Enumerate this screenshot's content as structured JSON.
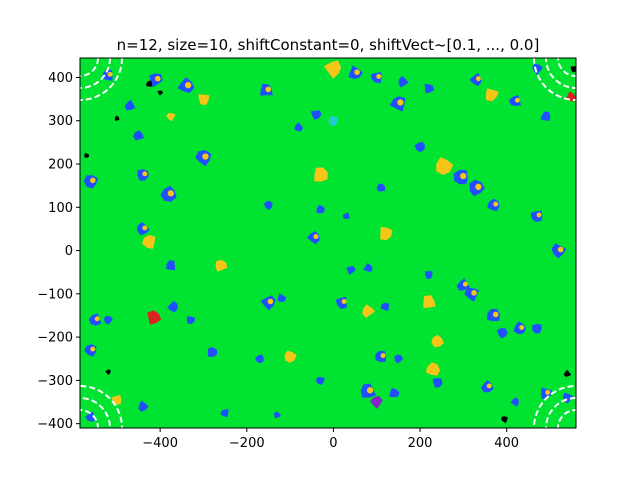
{
  "chart_data": {
    "type": "heatmap",
    "title": "n=12, size=10, shiftConstant=0,  shiftVect~[0.1, ..., 0.0]",
    "xlabel": "",
    "ylabel": "",
    "xlim": [
      -585,
      560
    ],
    "ylim": [
      -410,
      445
    ],
    "x_ticks": [
      -400,
      -200,
      0,
      200,
      400
    ],
    "y_ticks": [
      -400,
      -300,
      -200,
      -100,
      0,
      100,
      200,
      300,
      400
    ],
    "x_tick_labels": [
      "−400",
      "−200",
      "0",
      "200",
      "400"
    ],
    "y_tick_labels": [
      "−400",
      "−300",
      "−200",
      "−100",
      "0",
      "100",
      "200",
      "300",
      "400"
    ],
    "grid": false,
    "background_color": "#00e331",
    "patch_colors": {
      "blue": "#1f4fff",
      "yellow": "#f5c518",
      "cyan": "#22cccc",
      "purple": "#8822cc",
      "red": "#dd2222",
      "black": "#000000",
      "white": "#ffffff"
    },
    "patches": [
      {
        "x": -520,
        "y": 405,
        "s": 14,
        "c": "blue"
      },
      {
        "x": -410,
        "y": 395,
        "s": 16,
        "c": "blue"
      },
      {
        "x": -340,
        "y": 380,
        "s": 18,
        "c": "blue"
      },
      {
        "x": -300,
        "y": 350,
        "s": 14,
        "c": "yellow"
      },
      {
        "x": -470,
        "y": 335,
        "s": 12,
        "c": "blue"
      },
      {
        "x": -375,
        "y": 310,
        "s": 10,
        "c": "yellow"
      },
      {
        "x": -155,
        "y": 370,
        "s": 16,
        "c": "blue"
      },
      {
        "x": 0,
        "y": 420,
        "s": 20,
        "c": "yellow"
      },
      {
        "x": 50,
        "y": 410,
        "s": 16,
        "c": "blue"
      },
      {
        "x": 100,
        "y": 400,
        "s": 14,
        "c": "blue"
      },
      {
        "x": 160,
        "y": 390,
        "s": 12,
        "c": "blue"
      },
      {
        "x": 150,
        "y": 340,
        "s": 18,
        "c": "blue"
      },
      {
        "x": 220,
        "y": 375,
        "s": 12,
        "c": "blue"
      },
      {
        "x": 330,
        "y": 395,
        "s": 14,
        "c": "blue"
      },
      {
        "x": 365,
        "y": 360,
        "s": 16,
        "c": "yellow"
      },
      {
        "x": 420,
        "y": 345,
        "s": 14,
        "c": "blue"
      },
      {
        "x": 470,
        "y": 420,
        "s": 12,
        "c": "blue"
      },
      {
        "x": 490,
        "y": 310,
        "s": 12,
        "c": "blue"
      },
      {
        "x": -40,
        "y": 315,
        "s": 12,
        "c": "blue"
      },
      {
        "x": -80,
        "y": 285,
        "s": 10,
        "c": "blue"
      },
      {
        "x": 0,
        "y": 300,
        "s": 12,
        "c": "cyan"
      },
      {
        "x": -450,
        "y": 265,
        "s": 12,
        "c": "blue"
      },
      {
        "x": -300,
        "y": 215,
        "s": 18,
        "c": "blue"
      },
      {
        "x": -30,
        "y": 175,
        "s": 18,
        "c": "yellow"
      },
      {
        "x": 200,
        "y": 240,
        "s": 12,
        "c": "blue"
      },
      {
        "x": 255,
        "y": 195,
        "s": 20,
        "c": "yellow"
      },
      {
        "x": 295,
        "y": 170,
        "s": 18,
        "c": "blue"
      },
      {
        "x": 330,
        "y": 145,
        "s": 18,
        "c": "blue"
      },
      {
        "x": 370,
        "y": 105,
        "s": 14,
        "c": "blue"
      },
      {
        "x": -440,
        "y": 175,
        "s": 14,
        "c": "blue"
      },
      {
        "x": -380,
        "y": 130,
        "s": 18,
        "c": "blue"
      },
      {
        "x": -560,
        "y": 160,
        "s": 16,
        "c": "blue"
      },
      {
        "x": 110,
        "y": 145,
        "s": 10,
        "c": "blue"
      },
      {
        "x": -150,
        "y": 105,
        "s": 10,
        "c": "blue"
      },
      {
        "x": -30,
        "y": 95,
        "s": 10,
        "c": "blue"
      },
      {
        "x": 470,
        "y": 80,
        "s": 14,
        "c": "blue"
      },
      {
        "x": -440,
        "y": 50,
        "s": 14,
        "c": "blue"
      },
      {
        "x": -425,
        "y": 20,
        "s": 16,
        "c": "yellow"
      },
      {
        "x": -260,
        "y": -35,
        "s": 14,
        "c": "yellow"
      },
      {
        "x": -45,
        "y": 30,
        "s": 14,
        "c": "blue"
      },
      {
        "x": 120,
        "y": 40,
        "s": 16,
        "c": "yellow"
      },
      {
        "x": 30,
        "y": 80,
        "s": 8,
        "c": "blue"
      },
      {
        "x": 520,
        "y": 0,
        "s": 16,
        "c": "blue"
      },
      {
        "x": -375,
        "y": -35,
        "s": 12,
        "c": "blue"
      },
      {
        "x": 40,
        "y": -45,
        "s": 10,
        "c": "blue"
      },
      {
        "x": 80,
        "y": -40,
        "s": 10,
        "c": "blue"
      },
      {
        "x": 220,
        "y": -55,
        "s": 10,
        "c": "blue"
      },
      {
        "x": 300,
        "y": -80,
        "s": 14,
        "c": "blue"
      },
      {
        "x": 320,
        "y": -100,
        "s": 16,
        "c": "blue"
      },
      {
        "x": 220,
        "y": -120,
        "s": 16,
        "c": "yellow"
      },
      {
        "x": -150,
        "y": -120,
        "s": 16,
        "c": "blue"
      },
      {
        "x": -120,
        "y": -110,
        "s": 10,
        "c": "blue"
      },
      {
        "x": 20,
        "y": -120,
        "s": 14,
        "c": "blue"
      },
      {
        "x": 80,
        "y": -140,
        "s": 14,
        "c": "yellow"
      },
      {
        "x": 120,
        "y": -130,
        "s": 10,
        "c": "blue"
      },
      {
        "x": -415,
        "y": -155,
        "s": 16,
        "c": "red"
      },
      {
        "x": -370,
        "y": -130,
        "s": 12,
        "c": "blue"
      },
      {
        "x": -330,
        "y": -160,
        "s": 10,
        "c": "blue"
      },
      {
        "x": -550,
        "y": -160,
        "s": 14,
        "c": "blue"
      },
      {
        "x": -520,
        "y": -160,
        "s": 10,
        "c": "blue"
      },
      {
        "x": 370,
        "y": -150,
        "s": 16,
        "c": "blue"
      },
      {
        "x": 390,
        "y": -190,
        "s": 12,
        "c": "blue"
      },
      {
        "x": 430,
        "y": -180,
        "s": 14,
        "c": "blue"
      },
      {
        "x": 470,
        "y": -180,
        "s": 12,
        "c": "blue"
      },
      {
        "x": 240,
        "y": -210,
        "s": 14,
        "c": "yellow"
      },
      {
        "x": -560,
        "y": -230,
        "s": 14,
        "c": "blue"
      },
      {
        "x": -280,
        "y": -235,
        "s": 12,
        "c": "blue"
      },
      {
        "x": -170,
        "y": -250,
        "s": 10,
        "c": "blue"
      },
      {
        "x": -100,
        "y": -245,
        "s": 14,
        "c": "yellow"
      },
      {
        "x": 110,
        "y": -245,
        "s": 14,
        "c": "blue"
      },
      {
        "x": 150,
        "y": -250,
        "s": 10,
        "c": "blue"
      },
      {
        "x": 230,
        "y": -275,
        "s": 16,
        "c": "yellow"
      },
      {
        "x": 240,
        "y": -305,
        "s": 12,
        "c": "blue"
      },
      {
        "x": 355,
        "y": -315,
        "s": 14,
        "c": "blue"
      },
      {
        "x": -30,
        "y": -300,
        "s": 10,
        "c": "blue"
      },
      {
        "x": 80,
        "y": -325,
        "s": 18,
        "c": "blue"
      },
      {
        "x": 100,
        "y": -350,
        "s": 14,
        "c": "purple"
      },
      {
        "x": 140,
        "y": -330,
        "s": 12,
        "c": "blue"
      },
      {
        "x": -500,
        "y": -345,
        "s": 12,
        "c": "yellow"
      },
      {
        "x": -440,
        "y": -360,
        "s": 12,
        "c": "blue"
      },
      {
        "x": -250,
        "y": -375,
        "s": 10,
        "c": "blue"
      },
      {
        "x": -130,
        "y": -380,
        "s": 8,
        "c": "blue"
      },
      {
        "x": 420,
        "y": -350,
        "s": 10,
        "c": "blue"
      },
      {
        "x": 490,
        "y": -330,
        "s": 14,
        "c": "blue"
      },
      {
        "x": -560,
        "y": -385,
        "s": 12,
        "c": "blue"
      },
      {
        "x": 540,
        "y": -340,
        "s": 12,
        "c": "blue"
      },
      {
        "x": -425,
        "y": 385,
        "s": 8,
        "c": "black"
      },
      {
        "x": -400,
        "y": 365,
        "s": 6,
        "c": "black"
      },
      {
        "x": 548,
        "y": 355,
        "s": 12,
        "c": "red"
      },
      {
        "x": 555,
        "y": 420,
        "s": 8,
        "c": "black"
      },
      {
        "x": 540,
        "y": -285,
        "s": 8,
        "c": "black"
      },
      {
        "x": 395,
        "y": -390,
        "s": 8,
        "c": "black"
      },
      {
        "x": -500,
        "y": 305,
        "s": 6,
        "c": "black"
      },
      {
        "x": -520,
        "y": -280,
        "s": 6,
        "c": "black"
      },
      {
        "x": -570,
        "y": 220,
        "s": 6,
        "c": "black"
      }
    ]
  }
}
